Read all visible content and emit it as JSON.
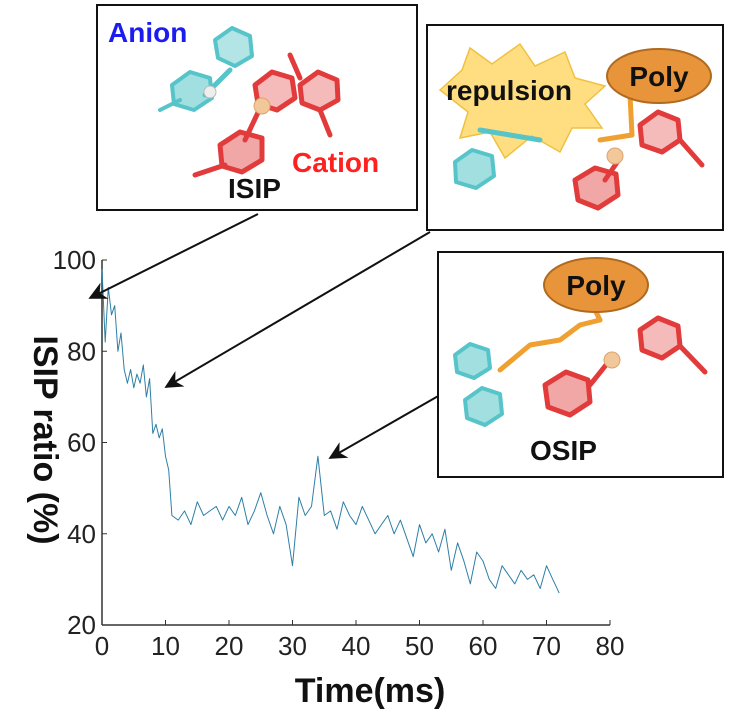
{
  "chart_data": {
    "type": "line",
    "xlabel": "Time(ms)",
    "ylabel": "ISIP ratio (%)",
    "xlim": [
      0,
      80
    ],
    "ylim": [
      20,
      100
    ],
    "xticks": [
      "0",
      "10",
      "20",
      "30",
      "40",
      "50",
      "60",
      "70",
      "80"
    ],
    "yticks": [
      "20",
      "40",
      "60",
      "80",
      "100"
    ],
    "grid": false,
    "legend": "none",
    "series": [
      {
        "color": "#2e7fa6",
        "x": [
          0,
          0.5,
          1,
          1.5,
          2,
          2.5,
          3,
          3.5,
          4,
          4.5,
          5,
          5.5,
          6,
          6.5,
          7,
          7.5,
          8,
          8.5,
          9,
          9.5,
          10,
          10.5,
          11,
          12,
          13,
          14,
          15,
          16,
          17,
          18,
          19,
          20,
          21,
          22,
          23,
          24,
          25,
          26,
          27,
          28,
          29,
          30,
          31,
          32,
          33,
          34,
          35,
          36,
          37,
          38,
          39,
          40,
          41,
          42,
          43,
          44,
          45,
          46,
          47,
          48,
          49,
          50,
          51,
          52,
          53,
          54,
          55,
          56,
          57,
          58,
          59,
          60,
          61,
          62,
          63,
          64,
          65,
          66,
          67,
          68,
          69,
          70,
          71,
          72
        ],
        "y": [
          98,
          82,
          94,
          88,
          90,
          80,
          84,
          76,
          73,
          76,
          72,
          75,
          73,
          77,
          70,
          74,
          62,
          64,
          61,
          63,
          57,
          54,
          44,
          43,
          45,
          42,
          47,
          44,
          45,
          46,
          43,
          46,
          44,
          48,
          42,
          45,
          49,
          44,
          40,
          46,
          42,
          33,
          48,
          44,
          46,
          57,
          44,
          45,
          41,
          47,
          44,
          42,
          46,
          43,
          40,
          42,
          44,
          40,
          43,
          39,
          35,
          42,
          38,
          40,
          36,
          41,
          32,
          38,
          34,
          29,
          36,
          34,
          30,
          28,
          33,
          31,
          29,
          32,
          30,
          31,
          28,
          33,
          30,
          27
        ]
      }
    ],
    "annotations": [
      {
        "text": "ISIP",
        "x": 1.5,
        "y": 90
      },
      {
        "text": "",
        "x": 8,
        "y": 72
      },
      {
        "text": "OSIP",
        "x": 35,
        "y": 57
      }
    ],
    "inset_labels": {
      "anion": "Anion",
      "cation": "Cation",
      "isip": "ISIP",
      "repulsion": "repulsion",
      "poly_top": "Poly",
      "poly_bottom": "Poly",
      "osip": "OSIP"
    },
    "colors": {
      "trace": "#2e7fa6",
      "anion": "#1c1cf0",
      "cation": "#ff2020",
      "poly_fill": "#e8943a",
      "molecule_red": "#e23b3b",
      "molecule_cyan": "#56c4c8",
      "molecule_orange": "#f0a030",
      "starburst": "#ffd86b"
    }
  }
}
